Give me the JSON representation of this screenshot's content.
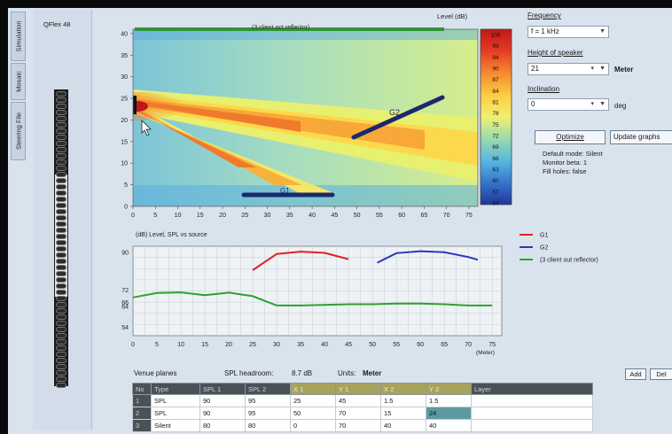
{
  "sidebar": {
    "tabs": [
      {
        "label": "Simulation"
      },
      {
        "label": "Mosaic"
      },
      {
        "label": "Steering File"
      }
    ]
  },
  "device": {
    "title": "QFlex 48"
  },
  "heatmap": {
    "level_label": "Level (dB)",
    "reflector_label": "(3 client oct reflector)",
    "g1_label": "G1",
    "g2_label": "G2",
    "colorbar_ticks": [
      "106",
      "99",
      "94",
      "90",
      "87",
      "84",
      "81",
      "78",
      "75",
      "72",
      "69",
      "66",
      "63",
      "60",
      "57",
      "54"
    ]
  },
  "chart_data": [
    {
      "type": "heatmap",
      "title": "",
      "xlabel": "",
      "ylabel": "",
      "x_ticks": [
        "0",
        "5",
        "10",
        "15",
        "20",
        "25",
        "30",
        "35",
        "40",
        "45",
        "50",
        "55",
        "60",
        "65",
        "70",
        "75"
      ],
      "y_ticks": [
        "0",
        "5",
        "10",
        "15",
        "20",
        "25",
        "30",
        "35",
        "40"
      ],
      "xlim": [
        0,
        77
      ],
      "ylim": [
        0,
        41
      ],
      "colorbar": {
        "label": "Level (dB)",
        "colors": [
          "#c01818",
          "#e03020",
          "#f05c28",
          "#f48a30",
          "#f8b038",
          "#fcd848",
          "#fff468",
          "#e8f47a",
          "#b8e890",
          "#90d8b0",
          "#6ccad0",
          "#54b4e0",
          "#3d94dc",
          "#3070cc",
          "#2a50b4",
          "#223598"
        ]
      },
      "overlays": [
        {
          "name": "(3 client oct reflector)",
          "color": "#2e9a36",
          "x": [
            0,
            71
          ],
          "y": [
            40,
            40
          ]
        },
        {
          "name": "G2",
          "color": "#1a2870",
          "x": [
            50,
            71
          ],
          "y": [
            15,
            25
          ]
        },
        {
          "name": "G1",
          "color": "#1a2870",
          "x": [
            25,
            46
          ],
          "y": [
            1,
            1
          ]
        }
      ]
    },
    {
      "type": "line",
      "title": "(dB) Level, SPL vs source",
      "xlabel": "(Meter)",
      "ylabel": "",
      "x_ticks": [
        "0",
        "5",
        "10",
        "15",
        "20",
        "25",
        "30",
        "35",
        "40",
        "45",
        "50",
        "55",
        "60",
        "65",
        "70",
        "75"
      ],
      "y_ticks": [
        "54",
        "64",
        "66",
        "72",
        "90"
      ],
      "xlim": [
        0,
        77
      ],
      "legend_position": "right",
      "series": [
        {
          "name": "G1",
          "color": "#e02020",
          "x": [
            25,
            30,
            35,
            40,
            45
          ],
          "y": [
            81.5,
            89.3,
            90.4,
            89.8,
            86.8
          ]
        },
        {
          "name": "G2",
          "color": "#2838b8",
          "x": [
            51,
            55,
            60,
            65,
            70,
            72
          ],
          "y": [
            85.1,
            89.7,
            90.6,
            90.1,
            87.8,
            86.5
          ]
        },
        {
          "name": "(3 client out reflector)",
          "color": "#2ea030",
          "x": [
            0,
            5,
            10,
            15,
            20,
            25,
            30,
            35,
            40,
            45,
            50,
            55,
            60,
            65,
            70,
            75
          ],
          "y": [
            68.4,
            70.5,
            70.8,
            69.5,
            70.7,
            69.0,
            64.5,
            64.5,
            64.8,
            65.1,
            65.1,
            65.4,
            65.4,
            65.1,
            64.5,
            64.5
          ]
        }
      ]
    }
  ],
  "controls": {
    "frequency_label": "Frequency",
    "frequency_value": "f = 1 kHz",
    "height_label": "Height of speaker",
    "height_value": "21",
    "height_unit": "Meter",
    "inclination_label": "Inclination",
    "inclination_value": "0",
    "inclination_unit": "deg",
    "optimize_label": "Optimize",
    "update_label": "Update graphs",
    "status_lines": [
      "Default mode: Silent",
      "Monitor beta: 1",
      "Fill holes: false"
    ]
  },
  "table": {
    "title": "Venue planes",
    "headroom_label": "SPL headroom:",
    "headroom_value": "8.7 dB",
    "units_label": "Units:",
    "units_value": "Meter",
    "add_label": "Add",
    "del_label": "Del",
    "headers": [
      "No",
      "Type",
      "SPL 1",
      "SPL 2",
      "X 1",
      "Y 1",
      "X 2",
      "Y 2",
      "Layer"
    ],
    "rows": [
      [
        "1",
        "SPL",
        "90",
        "95",
        "25",
        "45",
        "1.5",
        "1.5",
        ""
      ],
      [
        "2",
        "SPL",
        "90",
        "95",
        "50",
        "70",
        "15",
        "24",
        ""
      ],
      [
        "3",
        "Silent",
        "80",
        "80",
        "0",
        "70",
        "40",
        "40",
        ""
      ]
    ]
  }
}
